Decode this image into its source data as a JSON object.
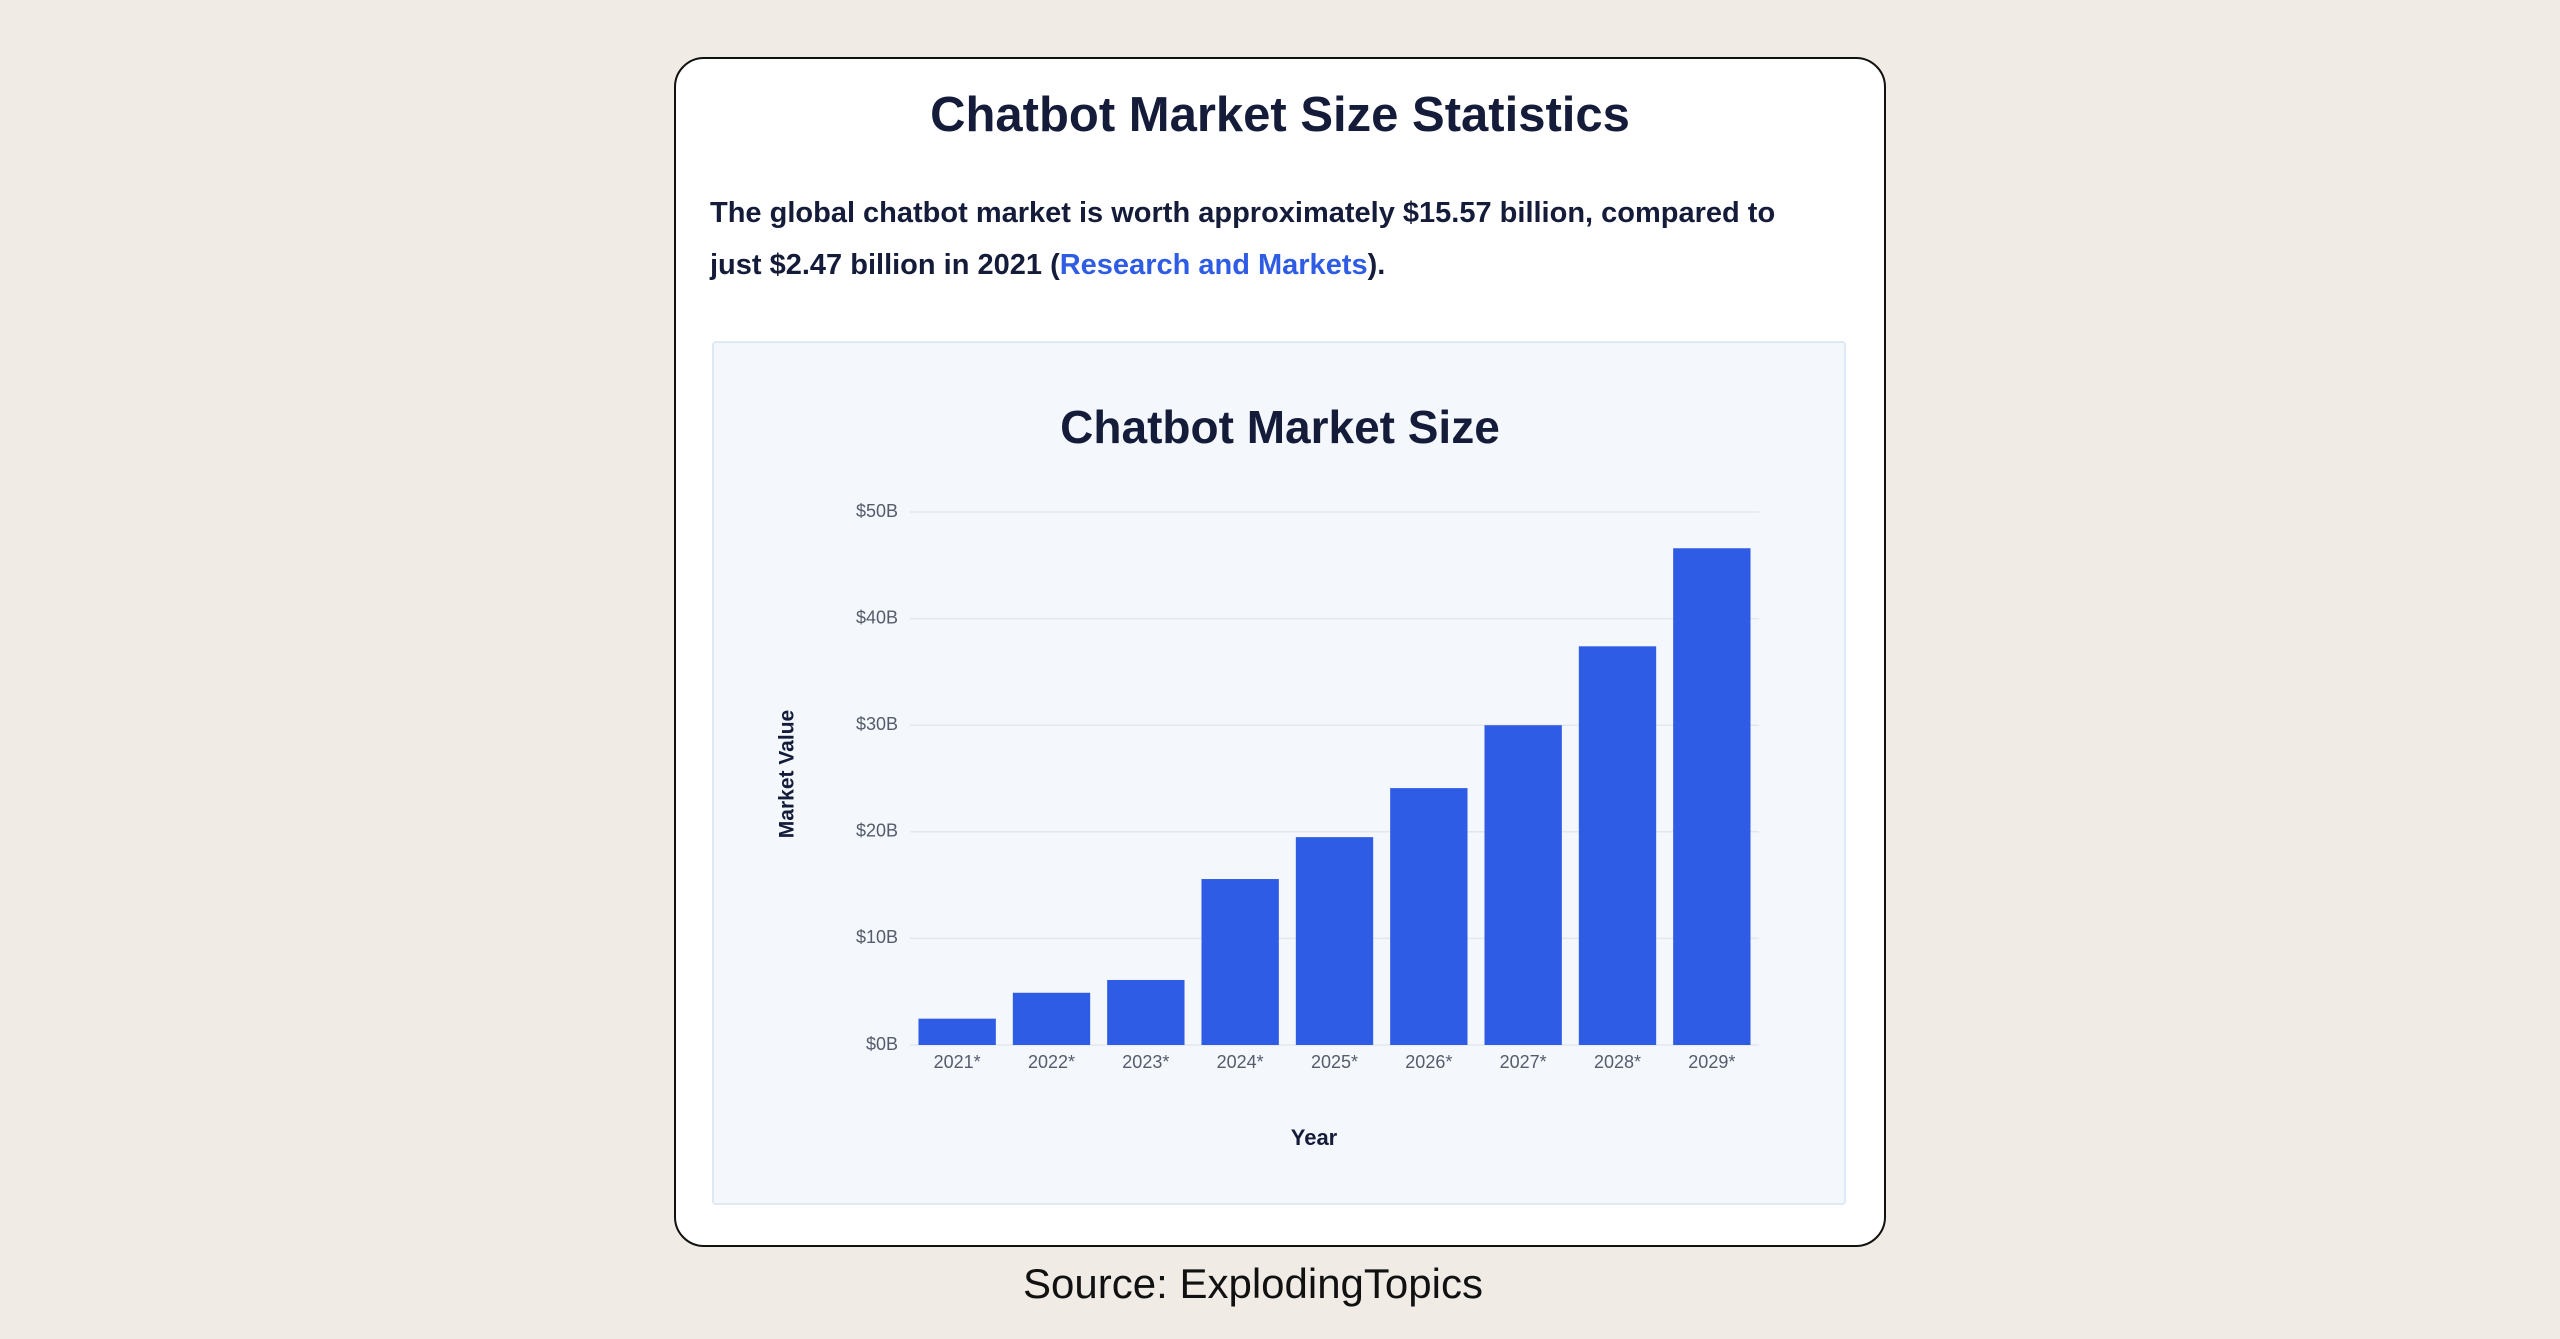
{
  "header": {
    "title": "Chatbot Market Size Statistics"
  },
  "intro": {
    "text_before": "The global chatbot market is worth approximately $15.57 billion, compared to just $2.47 billion in 2021 (",
    "link": "Research and Markets",
    "text_after": ")."
  },
  "chart_data": {
    "type": "bar",
    "title": "Chatbot Market Size",
    "x_label": "Year",
    "y_label": "Market Value",
    "categories": [
      "2021*",
      "2022*",
      "2023*",
      "2024*",
      "2025*",
      "2026*",
      "2027*",
      "2028*",
      "2029*"
    ],
    "values": [
      2.47,
      4.9,
      6.1,
      15.57,
      19.5,
      24.1,
      30,
      37.4,
      46.6
    ],
    "color": "#2f5ce5",
    "ylim": [
      0,
      50
    ],
    "yticks": [
      {
        "value": 0,
        "label": "$0B"
      },
      {
        "value": 10,
        "label": "$10B"
      },
      {
        "value": 20,
        "label": "$20B"
      },
      {
        "value": 30,
        "label": "$30B"
      },
      {
        "value": 40,
        "label": "$40B"
      },
      {
        "value": 50,
        "label": "$50B"
      }
    ],
    "grid": true
  },
  "source": "Source: ExplodingTopics"
}
